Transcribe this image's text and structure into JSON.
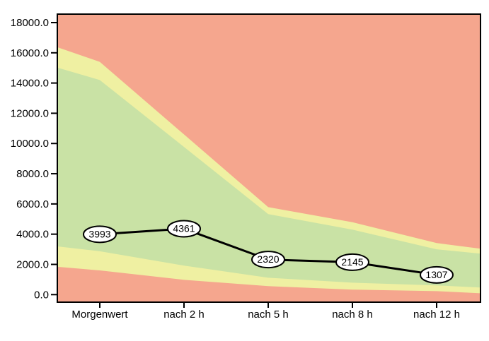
{
  "chart_data": {
    "type": "area+line",
    "title": "",
    "xlabel": "",
    "ylabel": "",
    "categories": [
      "Morgenwert",
      "nach  2 h",
      "nach  5 h",
      "nach  8 h",
      "nach 12 h"
    ],
    "series": [
      {
        "name": "values",
        "values": [
          3993,
          4361,
          2320,
          2145,
          1307
        ]
      }
    ],
    "point_labels": [
      "3993",
      "4361",
      "2320",
      "2145",
      "1307"
    ],
    "y_axis": {
      "min": -500,
      "max": 18560,
      "tick_values": [
        18000,
        16000,
        14000,
        12000,
        10000,
        8000,
        6000,
        4000,
        2000,
        0
      ],
      "tick_labels": [
        "18000.0",
        "16000.0",
        "14000.0",
        "12000.0",
        "10000.0",
        "8000.0",
        "6000.0",
        "4000.0",
        "2000.0",
        "0.0"
      ]
    },
    "grid": false,
    "legend": "none",
    "reference_bands": {
      "comment": "stacked zones: red (critical) outside, yellow (borderline), green (normal) middle; boundaries are value polylines sampled at plot-left edge, each category, and plot-right edge",
      "x_offsets": [
        -0.52,
        0,
        1,
        2,
        3,
        4,
        4.52
      ],
      "boundaries": {
        "red_low_top": [
          1850,
          1600,
          980,
          560,
          330,
          230,
          90
        ],
        "yellow_low_top": [
          3200,
          2870,
          1920,
          1120,
          790,
          610,
          470
        ],
        "green_top": [
          15050,
          14200,
          9770,
          5330,
          4300,
          3000,
          2710
        ],
        "yellow_high_top": [
          16400,
          15400,
          10600,
          5790,
          4790,
          3410,
          3040
        ]
      }
    },
    "colors": {
      "band_red": "#f5a68e",
      "band_yellow": "#eff0a2",
      "band_green": "#c9e2a5",
      "line": "#000000",
      "marker_fill": "#ffffff",
      "marker_stroke": "#000000",
      "axis": "#000000",
      "text": "#000000",
      "background": "#ffffff"
    }
  }
}
